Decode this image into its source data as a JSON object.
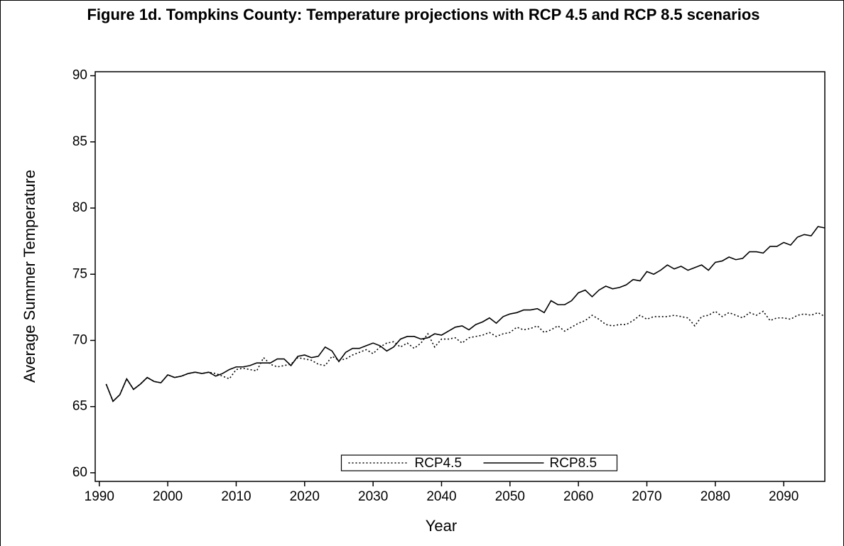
{
  "chart_data": {
    "type": "line",
    "title": "Figure 1d. Tompkins County: Temperature projections with RCP 4.5 and RCP 8.5 scenarios",
    "x_label": "Year",
    "y_label": "Average Summer Temperature",
    "x": [
      1991,
      1992,
      1993,
      1994,
      1995,
      1996,
      1997,
      1998,
      1999,
      2000,
      2001,
      2002,
      2003,
      2004,
      2005,
      2006,
      2007,
      2008,
      2009,
      2010,
      2011,
      2012,
      2013,
      2014,
      2015,
      2016,
      2017,
      2018,
      2019,
      2020,
      2021,
      2022,
      2023,
      2024,
      2025,
      2026,
      2027,
      2028,
      2029,
      2030,
      2031,
      2032,
      2033,
      2034,
      2035,
      2036,
      2037,
      2038,
      2039,
      2040,
      2041,
      2042,
      2043,
      2044,
      2045,
      2046,
      2047,
      2048,
      2049,
      2050,
      2051,
      2052,
      2053,
      2054,
      2055,
      2056,
      2057,
      2058,
      2059,
      2060,
      2061,
      2062,
      2063,
      2064,
      2065,
      2066,
      2067,
      2068,
      2069,
      2070,
      2071,
      2072,
      2073,
      2074,
      2075,
      2076,
      2077,
      2078,
      2079,
      2080,
      2081,
      2082,
      2083,
      2084,
      2085,
      2086,
      2087,
      2088,
      2089,
      2090,
      2091,
      2092,
      2093,
      2094,
      2095,
      2096
    ],
    "series": [
      {
        "name": "RCP4.5",
        "color": "#000000",
        "style": "dotted",
        "values": [
          66.7,
          65.4,
          65.9,
          67.1,
          66.3,
          66.7,
          67.2,
          66.9,
          66.8,
          67.4,
          67.2,
          67.3,
          67.5,
          67.6,
          67.5,
          67.6,
          67.5,
          67.3,
          67.1,
          67.8,
          67.9,
          67.8,
          67.7,
          68.7,
          68.2,
          68.0,
          68.1,
          68.2,
          68.7,
          68.6,
          68.5,
          68.2,
          68.1,
          68.8,
          68.5,
          68.6,
          68.9,
          69.1,
          69.3,
          69.0,
          69.5,
          69.8,
          69.9,
          69.5,
          69.8,
          69.4,
          69.8,
          70.5,
          69.5,
          70.1,
          70.1,
          70.2,
          69.8,
          70.2,
          70.3,
          70.4,
          70.6,
          70.3,
          70.5,
          70.6,
          71.0,
          70.8,
          70.9,
          71.1,
          70.6,
          70.8,
          71.1,
          70.7,
          71.0,
          71.3,
          71.5,
          71.9,
          71.6,
          71.2,
          71.1,
          71.2,
          71.2,
          71.5,
          71.9,
          71.6,
          71.8,
          71.8,
          71.8,
          71.9,
          71.8,
          71.7,
          71.1,
          71.8,
          71.9,
          72.2,
          71.8,
          72.1,
          71.9,
          71.7,
          72.1,
          71.9,
          72.2,
          71.5,
          71.7,
          71.7,
          71.6,
          71.9,
          72.0,
          71.9,
          72.1,
          71.8
        ]
      },
      {
        "name": "RCP8.5",
        "color": "#000000",
        "style": "solid",
        "values": [
          66.7,
          65.4,
          65.9,
          67.1,
          66.3,
          66.7,
          67.2,
          66.9,
          66.8,
          67.4,
          67.2,
          67.3,
          67.5,
          67.6,
          67.5,
          67.6,
          67.3,
          67.5,
          67.8,
          68.0,
          68.0,
          68.1,
          68.3,
          68.3,
          68.3,
          68.6,
          68.6,
          68.1,
          68.8,
          68.9,
          68.7,
          68.8,
          69.5,
          69.2,
          68.4,
          69.1,
          69.4,
          69.4,
          69.6,
          69.8,
          69.6,
          69.2,
          69.5,
          70.1,
          70.3,
          70.3,
          70.1,
          70.2,
          70.5,
          70.4,
          70.7,
          71.0,
          71.1,
          70.8,
          71.2,
          71.4,
          71.7,
          71.3,
          71.8,
          72.0,
          72.1,
          72.3,
          72.3,
          72.4,
          72.1,
          73.0,
          72.7,
          72.7,
          73.0,
          73.6,
          73.8,
          73.3,
          73.8,
          74.1,
          73.9,
          74.0,
          74.2,
          74.6,
          74.5,
          75.2,
          75.0,
          75.3,
          75.7,
          75.4,
          75.6,
          75.3,
          75.5,
          75.7,
          75.3,
          75.9,
          76.0,
          76.3,
          76.1,
          76.2,
          76.7,
          76.7,
          76.6,
          77.1,
          77.1,
          77.4,
          77.2,
          77.8,
          78.0,
          77.9,
          78.6,
          78.5
        ]
      }
    ],
    "xlim": [
      1989.4,
      2096
    ],
    "xticks": [
      1990,
      2000,
      2010,
      2020,
      2030,
      2040,
      2050,
      2060,
      2070,
      2080,
      2090
    ],
    "ylim": [
      59.35,
      90.3
    ],
    "yticks": [
      60,
      65,
      70,
      75,
      80,
      85,
      90
    ],
    "legend": "bottom"
  }
}
